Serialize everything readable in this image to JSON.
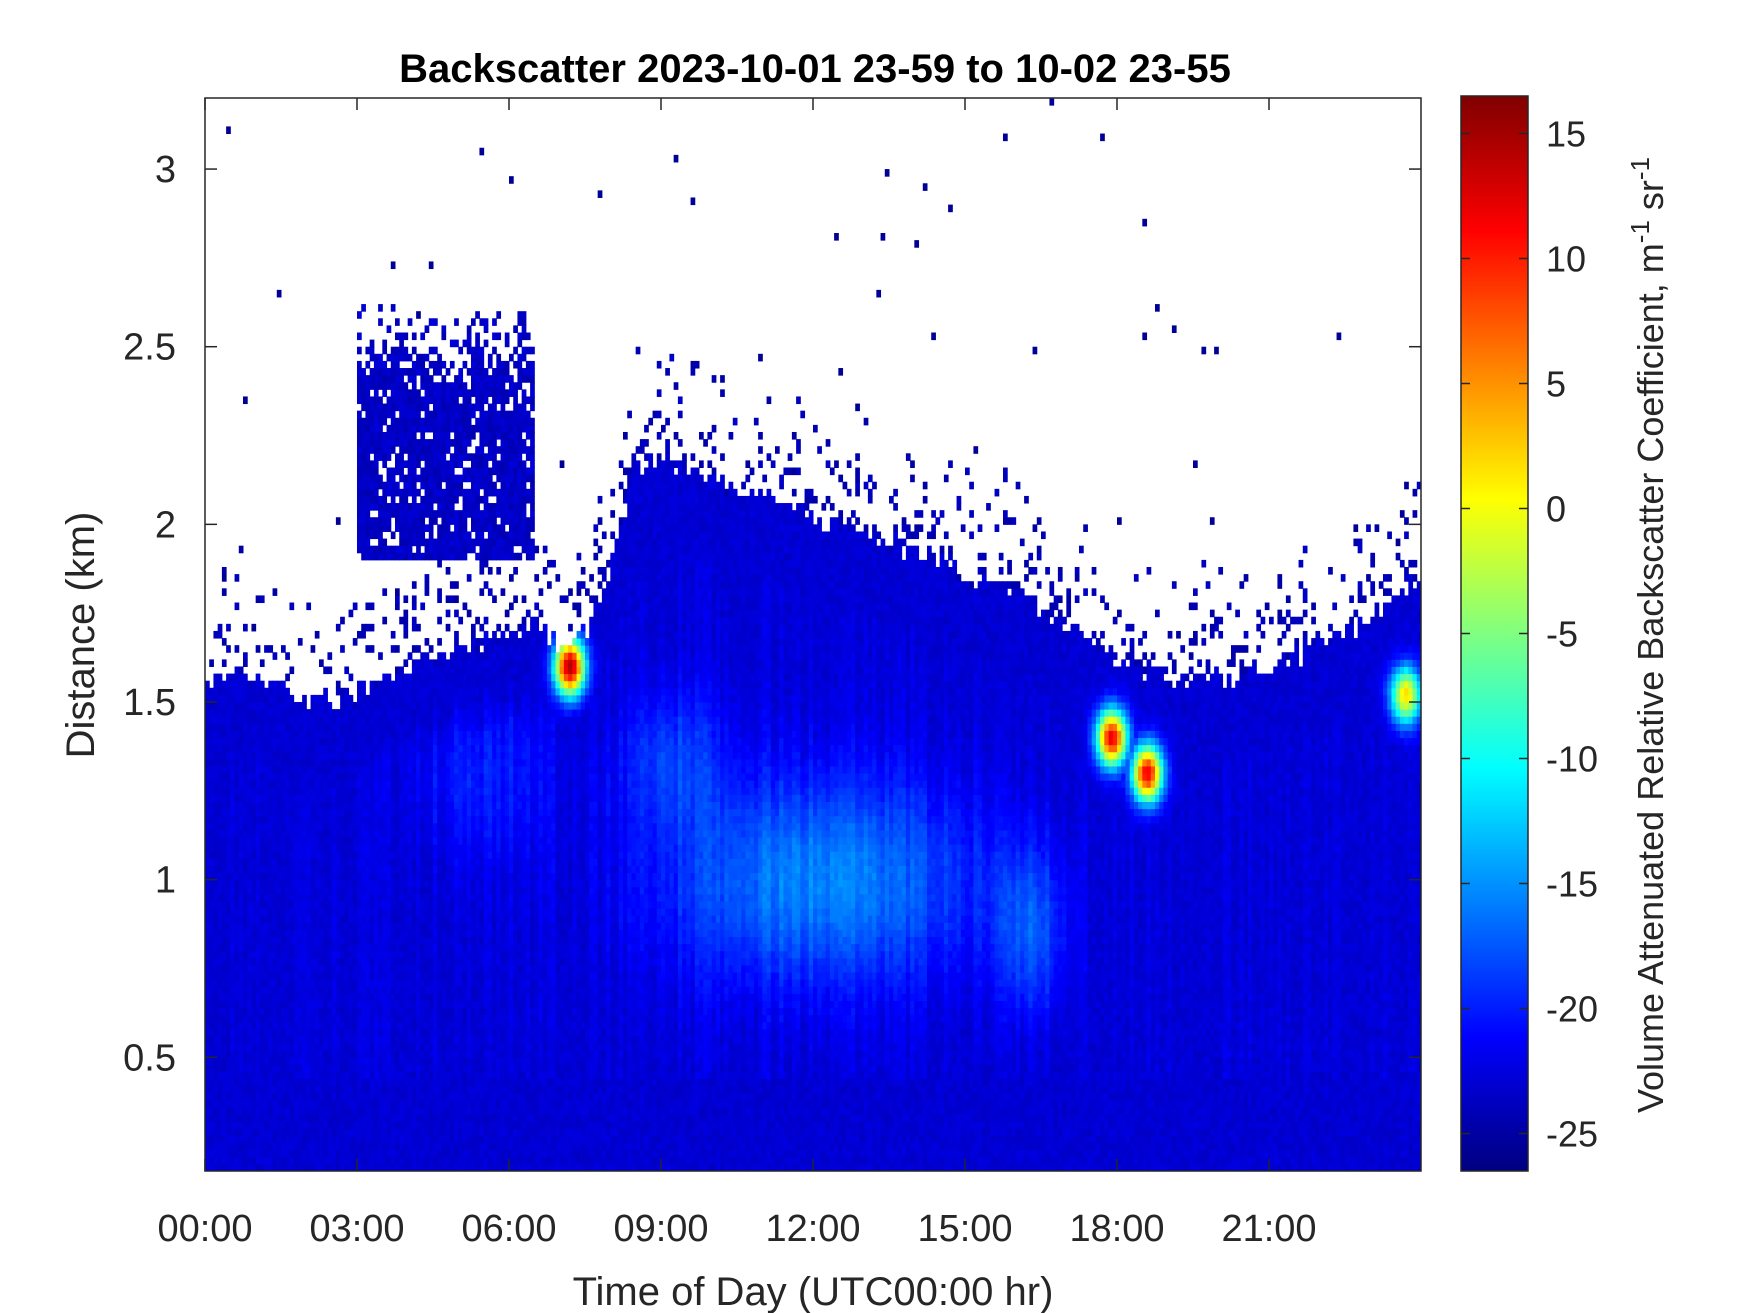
{
  "chart_data": {
    "type": "heatmap",
    "title": "Backscatter 2023-10-01 23-59 to 10-02 23-55",
    "xlabel": "Time of Day (UTC00:00 hr)",
    "ylabel": "Distance (km)",
    "colorbar_label": "Volume Attenuated Relative Backscatter Coefficient, m",
    "colorbar_label_sup1": "-1",
    "colorbar_label_mid": " sr",
    "colorbar_label_sup2": "-1",
    "colormap": "jet",
    "xlim": [
      0,
      24
    ],
    "ylim": [
      0.18,
      3.2
    ],
    "clim": [
      -26.5,
      16.5
    ],
    "x_ticks": [
      0,
      3,
      6,
      9,
      12,
      15,
      18,
      21
    ],
    "x_tick_labels": [
      "00:00",
      "03:00",
      "06:00",
      "09:00",
      "12:00",
      "15:00",
      "18:00",
      "21:00"
    ],
    "y_ticks": [
      0.5,
      1,
      1.5,
      2,
      2.5,
      3
    ],
    "y_tick_labels": [
      "0.5",
      "1",
      "1.5",
      "2",
      "2.5",
      "3"
    ],
    "c_ticks": [
      -25,
      -20,
      -15,
      -10,
      -5,
      0,
      5,
      10,
      15
    ],
    "c_tick_labels": [
      "-25",
      "-20",
      "-15",
      "-10",
      "-5",
      "0",
      "5",
      "10",
      "15"
    ],
    "mixed_layer_top_km": {
      "x": [
        0,
        1,
        2,
        3,
        4,
        5,
        6,
        6.5,
        7,
        7.5,
        7.8,
        8.5,
        9,
        10,
        11,
        12,
        13,
        14,
        15,
        16,
        17,
        18,
        19,
        20,
        21,
        22,
        23,
        24
      ],
      "y": [
        1.55,
        1.58,
        1.5,
        1.52,
        1.6,
        1.64,
        1.7,
        1.72,
        1.66,
        1.7,
        1.78,
        2.15,
        2.2,
        2.12,
        2.08,
        2.02,
        1.98,
        1.92,
        1.86,
        1.8,
        1.72,
        1.62,
        1.56,
        1.57,
        1.6,
        1.66,
        1.73,
        1.86
      ]
    },
    "elevated_layer_km": {
      "x_start": 3.0,
      "x_end": 6.5,
      "bottom": 1.9,
      "top": 2.45
    },
    "hotspots": [
      {
        "x": 7.2,
        "y": 1.6,
        "value": 15
      },
      {
        "x": 17.9,
        "y": 1.4,
        "value": 12
      },
      {
        "x": 18.6,
        "y": 1.3,
        "value": 12
      },
      {
        "x": 23.7,
        "y": 1.52,
        "value": 2
      }
    ],
    "grid": false
  }
}
